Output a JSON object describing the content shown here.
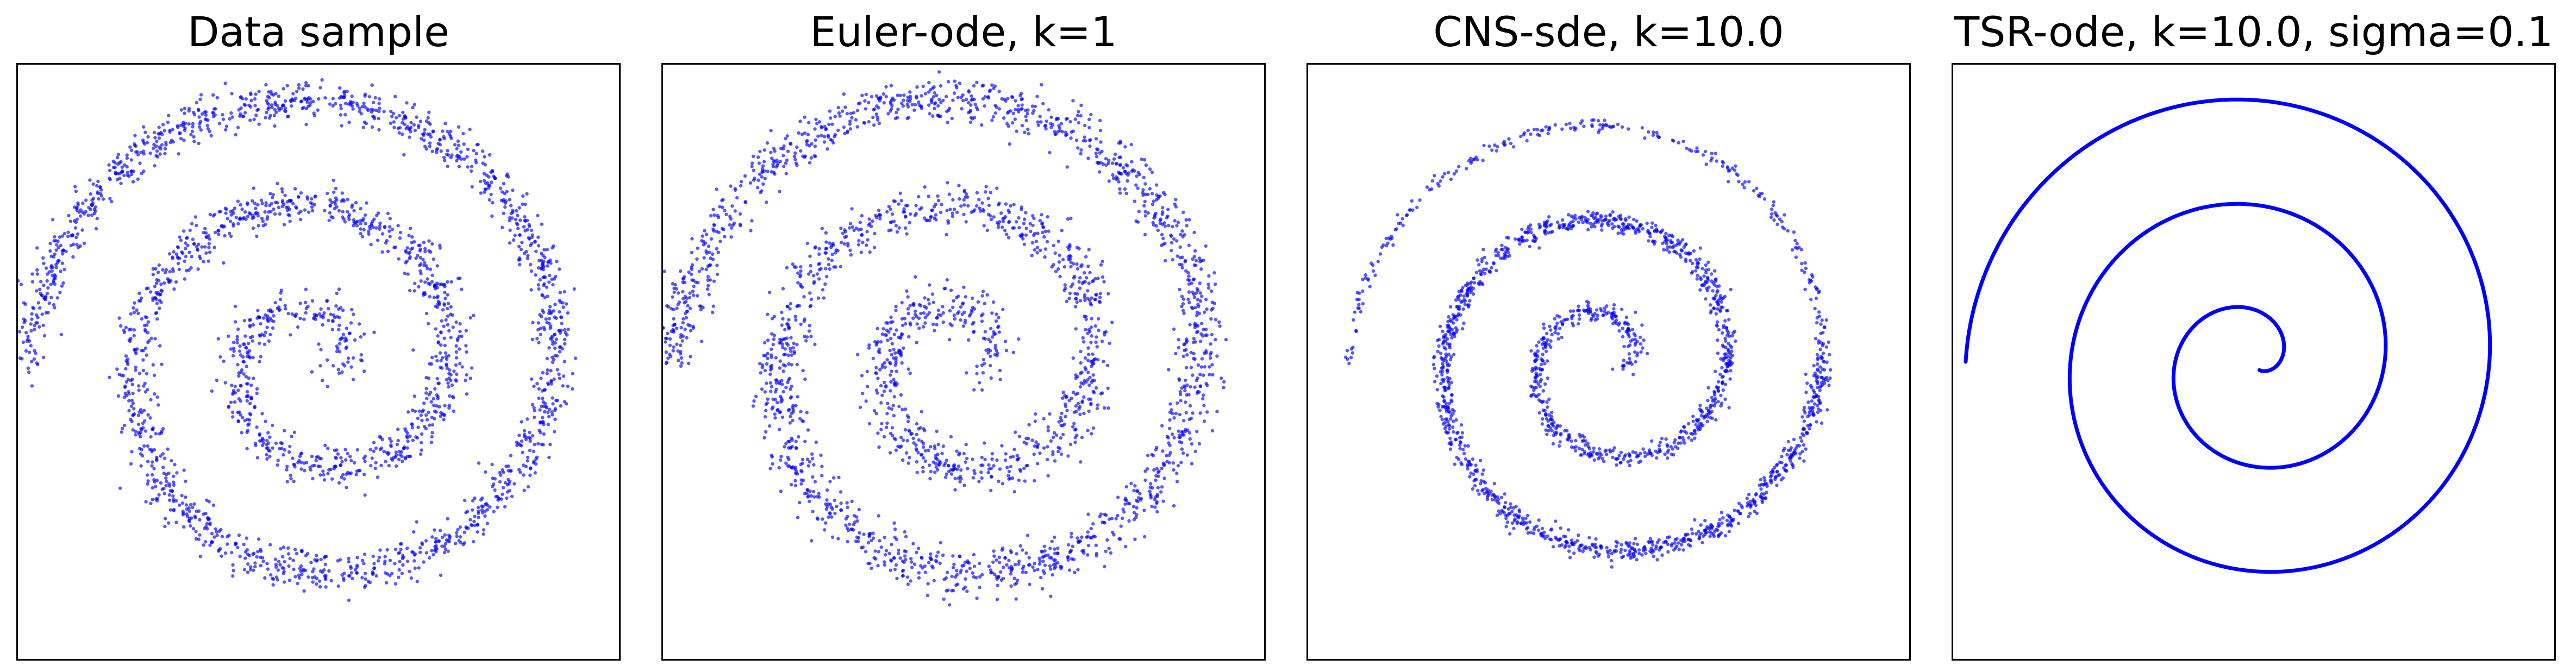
{
  "chart_data": [
    {
      "type": "scatter",
      "title": "Data sample",
      "marker_color": "#0000ff",
      "xlabel": "",
      "ylabel": "",
      "spiral": {
        "turns": 2.75,
        "max_radius": 1.0,
        "end_angle_deg": 180,
        "noise": 0.035,
        "points": 2600
      }
    },
    {
      "type": "scatter",
      "title": "Euler-ode, k=1",
      "marker_color": "#0000ff",
      "xlabel": "",
      "ylabel": "",
      "spiral": {
        "turns": 2.75,
        "max_radius": 1.0,
        "end_angle_deg": 180,
        "noise": 0.04,
        "points": 2600
      }
    },
    {
      "type": "scatter",
      "title": "CNS-sde, k=10.0",
      "marker_color": "#0000ff",
      "xlabel": "",
      "ylabel": "",
      "spiral": {
        "turns": 2.75,
        "max_radius": 0.9,
        "end_angle_deg": 180,
        "noise": 0.018,
        "points": 2600,
        "sparse_outer_fraction": 0.3
      }
    },
    {
      "type": "line",
      "title": "TSR-ode, k=10.0, sigma=0.1",
      "marker_color": "#0000ff",
      "xlabel": "",
      "ylabel": "",
      "spiral": {
        "turns": 2.75,
        "max_radius": 1.0,
        "end_angle_deg": 180,
        "noise": 0.0
      }
    }
  ]
}
